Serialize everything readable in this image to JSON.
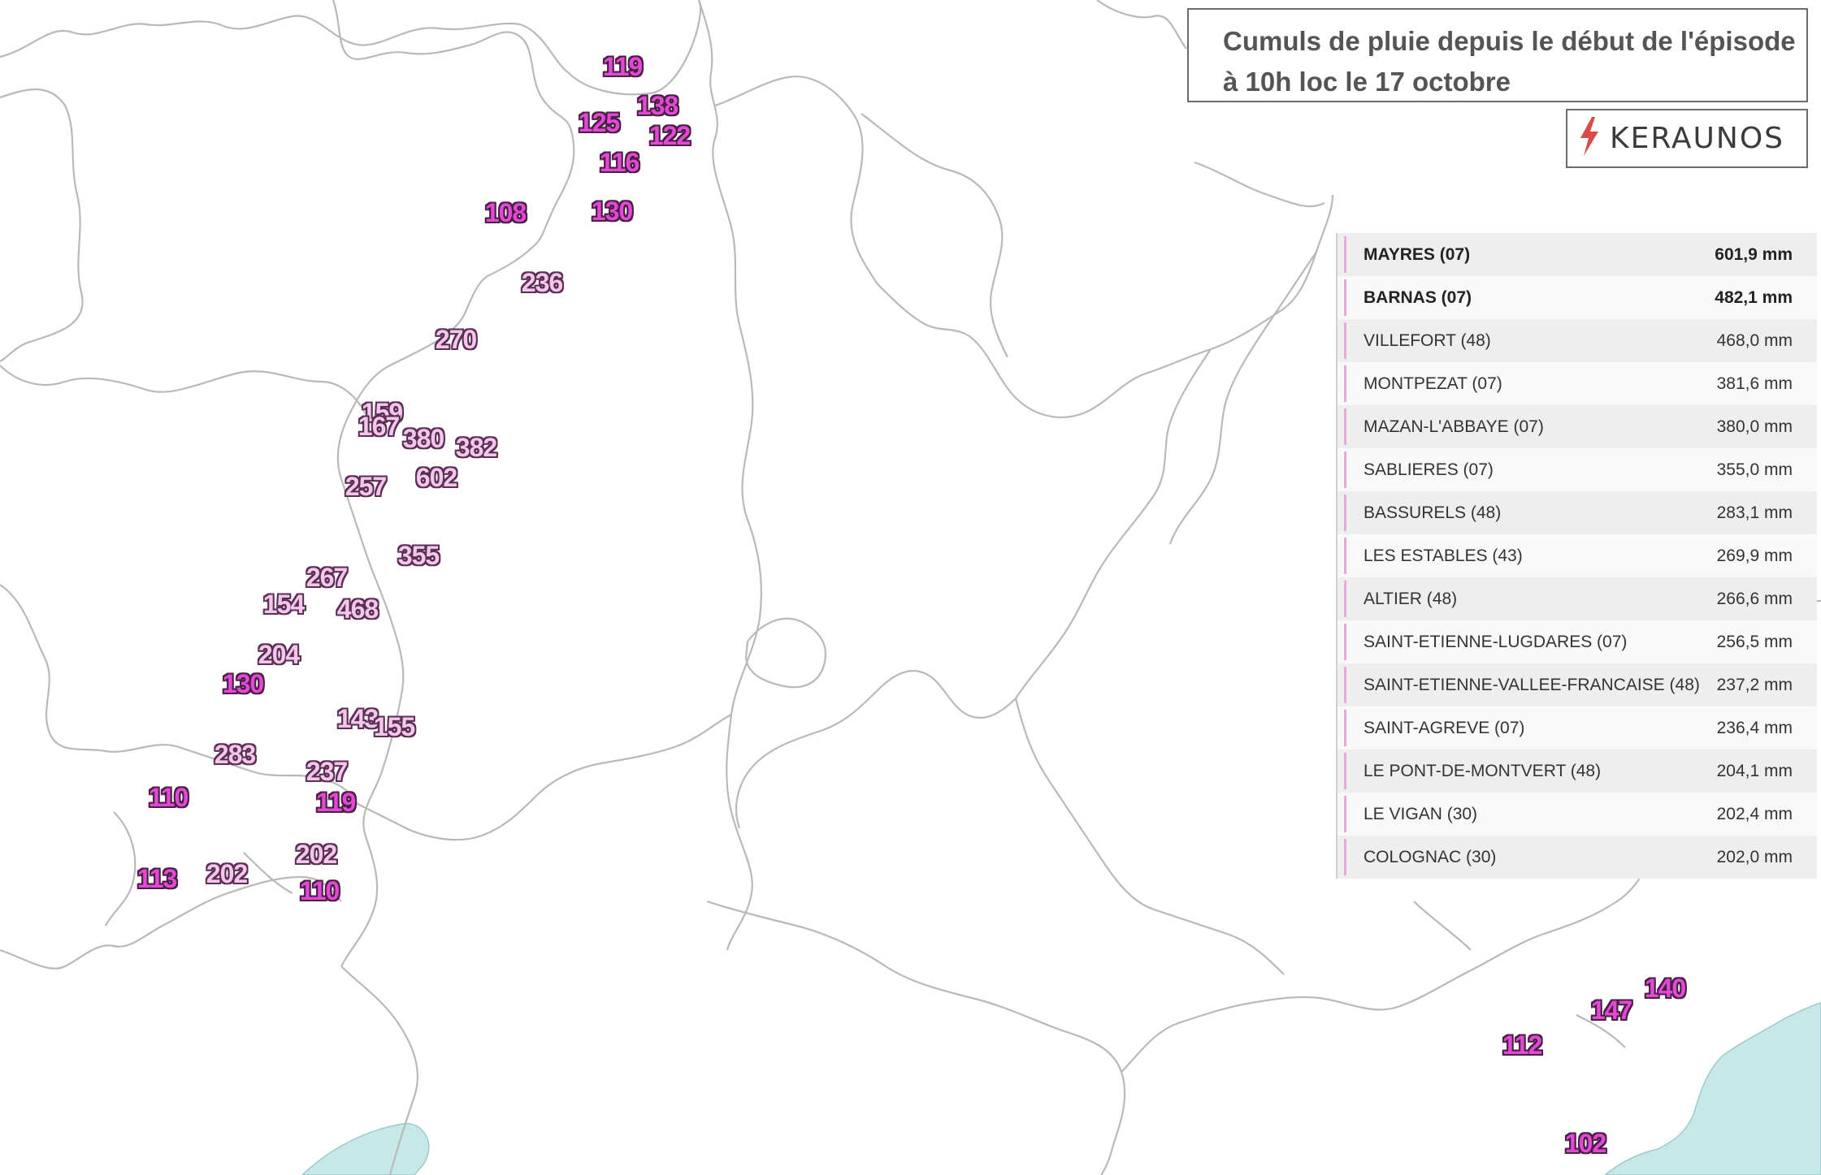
{
  "title": {
    "line1": "Cumuls de pluie depuis le début de l'épisode",
    "line2": "à 10h loc le 17 octobre"
  },
  "logo": {
    "icon": "lightning-bolt-icon",
    "text": "KERAUNOS"
  },
  "colors": {
    "marker_high": "#f3c6ea",
    "marker_low": "#e24ad6",
    "sea": "#c6e8e8",
    "borders": "#b9b9b9",
    "ranking_accent": "#e9a8dd"
  },
  "markers": [
    {
      "value": "119",
      "tone": "magenta"
    },
    {
      "value": "138",
      "tone": "magenta"
    },
    {
      "value": "125",
      "tone": "magenta"
    },
    {
      "value": "122",
      "tone": "magenta"
    },
    {
      "value": "116",
      "tone": "magenta"
    },
    {
      "value": "108",
      "tone": "magenta"
    },
    {
      "value": "130",
      "tone": "magenta"
    },
    {
      "value": "236",
      "tone": "pink"
    },
    {
      "value": "270",
      "tone": "pink"
    },
    {
      "value": "159",
      "tone": "pink"
    },
    {
      "value": "167",
      "tone": "pink"
    },
    {
      "value": "380",
      "tone": "pink"
    },
    {
      "value": "382",
      "tone": "pink"
    },
    {
      "value": "602",
      "tone": "pink"
    },
    {
      "value": "257",
      "tone": "pink"
    },
    {
      "value": "355",
      "tone": "pink"
    },
    {
      "value": "267",
      "tone": "pink"
    },
    {
      "value": "154",
      "tone": "pink"
    },
    {
      "value": "468",
      "tone": "pink"
    },
    {
      "value": "204",
      "tone": "pink"
    },
    {
      "value": "130",
      "tone": "magenta"
    },
    {
      "value": "143",
      "tone": "pink"
    },
    {
      "value": "155",
      "tone": "pink"
    },
    {
      "value": "283",
      "tone": "pink"
    },
    {
      "value": "237",
      "tone": "pink"
    },
    {
      "value": "110",
      "tone": "magenta"
    },
    {
      "value": "119",
      "tone": "magenta"
    },
    {
      "value": "202",
      "tone": "pink"
    },
    {
      "value": "113",
      "tone": "magenta"
    },
    {
      "value": "202",
      "tone": "pink"
    },
    {
      "value": "110",
      "tone": "magenta"
    },
    {
      "value": "140",
      "tone": "magenta"
    },
    {
      "value": "147",
      "tone": "magenta"
    },
    {
      "value": "112",
      "tone": "magenta"
    },
    {
      "value": "102",
      "tone": "magenta"
    }
  ],
  "ranking": [
    {
      "station": "MAYRES (07)",
      "amount": "601,9 mm",
      "bold": true
    },
    {
      "station": "BARNAS (07)",
      "amount": "482,1 mm",
      "bold": true
    },
    {
      "station": "VILLEFORT (48)",
      "amount": "468,0 mm",
      "bold": false
    },
    {
      "station": "MONTPEZAT (07)",
      "amount": "381,6 mm",
      "bold": false
    },
    {
      "station": "MAZAN-L'ABBAYE (07)",
      "amount": "380,0 mm",
      "bold": false
    },
    {
      "station": "SABLIERES (07)",
      "amount": "355,0 mm",
      "bold": false
    },
    {
      "station": "BASSURELS (48)",
      "amount": "283,1 mm",
      "bold": false
    },
    {
      "station": "LES ESTABLES (43)",
      "amount": "269,9 mm",
      "bold": false
    },
    {
      "station": "ALTIER (48)",
      "amount": "266,6 mm",
      "bold": false
    },
    {
      "station": "SAINT-ETIENNE-LUGDARES (07)",
      "amount": "256,5 mm",
      "bold": false
    },
    {
      "station": "SAINT-ETIENNE-VALLEE-FRANCAISE (48)",
      "amount": "237,2 mm",
      "bold": false
    },
    {
      "station": "SAINT-AGREVE (07)",
      "amount": "236,4 mm",
      "bold": false
    },
    {
      "station": "LE PONT-DE-MONTVERT (48)",
      "amount": "204,1 mm",
      "bold": false
    },
    {
      "station": "LE VIGAN (30)",
      "amount": "202,4 mm",
      "bold": false
    },
    {
      "station": "COLOGNAC (30)",
      "amount": "202,0 mm",
      "bold": false
    }
  ]
}
